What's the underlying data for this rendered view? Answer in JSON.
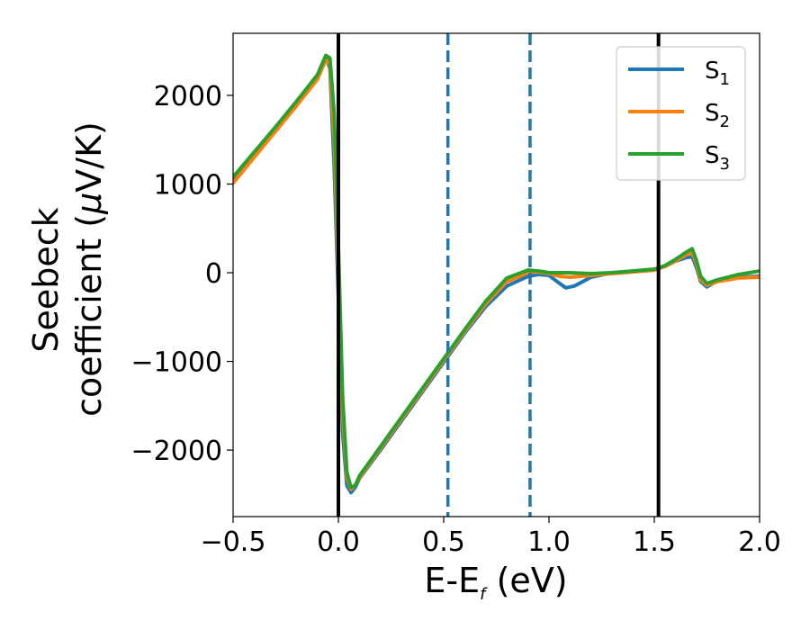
{
  "chart_data": {
    "type": "line",
    "xlabel": "E-E",
    "xlabel_sub": "f",
    "xlabel_unit": " (eV)",
    "ylabel_line1": "Seebeck",
    "ylabel_line2": "coefficient  (",
    "ylabel_mu": "μ",
    "ylabel_unit": "V/K)",
    "xlim": [
      -0.5,
      2.0
    ],
    "ylim": [
      -2750,
      2700
    ],
    "x_ticks": [
      -0.5,
      0.0,
      0.5,
      1.0,
      1.5,
      2.0
    ],
    "x_tick_labels": [
      "−0.5",
      "0.0",
      "0.5",
      "1.0",
      "1.5",
      "2.0"
    ],
    "y_ticks": [
      -2000,
      -1000,
      0,
      1000,
      2000
    ],
    "y_tick_labels": [
      "−2000",
      "−1000",
      "0",
      "1000",
      "2000"
    ],
    "grid": false,
    "legend_position": "top-right",
    "vertical_lines": [
      {
        "x": 0.0,
        "style": "solid",
        "color": "#000000"
      },
      {
        "x": 1.52,
        "style": "solid",
        "color": "#000000"
      },
      {
        "x": 0.52,
        "style": "dashed",
        "color": "#1f77b4"
      },
      {
        "x": 0.91,
        "style": "dashed",
        "color": "#1f77b4"
      }
    ],
    "series": [
      {
        "name": "S",
        "sub": "1",
        "color": "#1f77b4",
        "x": [
          -0.5,
          -0.4,
          -0.3,
          -0.2,
          -0.1,
          -0.06,
          -0.04,
          -0.02,
          0.0,
          0.02,
          0.04,
          0.06,
          0.08,
          0.1,
          0.2,
          0.3,
          0.4,
          0.5,
          0.6,
          0.7,
          0.8,
          0.9,
          0.95,
          1.0,
          1.05,
          1.08,
          1.12,
          1.2,
          1.3,
          1.4,
          1.5,
          1.55,
          1.6,
          1.65,
          1.68,
          1.7,
          1.72,
          1.75,
          1.8,
          1.9,
          2.0
        ],
        "y": [
          1050,
          1330,
          1610,
          1900,
          2200,
          2440,
          2300,
          1200,
          -300,
          -1800,
          -2400,
          -2480,
          -2420,
          -2320,
          -2000,
          -1670,
          -1340,
          -1010,
          -680,
          -380,
          -150,
          -40,
          -20,
          -30,
          -120,
          -170,
          -150,
          -50,
          0,
          20,
          40,
          70,
          130,
          170,
          180,
          60,
          -100,
          -160,
          -90,
          -50,
          -40
        ]
      },
      {
        "name": "S",
        "sub": "2",
        "color": "#ff7f0e",
        "x": [
          -0.5,
          -0.4,
          -0.3,
          -0.2,
          -0.1,
          -0.06,
          -0.04,
          -0.02,
          0.0,
          0.02,
          0.04,
          0.06,
          0.08,
          0.1,
          0.2,
          0.3,
          0.4,
          0.5,
          0.6,
          0.7,
          0.8,
          0.9,
          0.95,
          1.0,
          1.05,
          1.1,
          1.2,
          1.3,
          1.4,
          1.5,
          1.55,
          1.6,
          1.65,
          1.68,
          1.7,
          1.72,
          1.75,
          1.8,
          1.9,
          2.0
        ],
        "y": [
          1010,
          1300,
          1590,
          1880,
          2180,
          2400,
          2350,
          1500,
          0,
          -1600,
          -2300,
          -2440,
          -2400,
          -2310,
          -1980,
          -1650,
          -1320,
          -990,
          -660,
          -350,
          -100,
          0,
          10,
          -10,
          -40,
          -50,
          -30,
          -10,
          10,
          30,
          70,
          130,
          200,
          230,
          100,
          -80,
          -140,
          -100,
          -60,
          -50
        ]
      },
      {
        "name": "S",
        "sub": "3",
        "color": "#2ca02c",
        "x": [
          -0.5,
          -0.4,
          -0.3,
          -0.2,
          -0.1,
          -0.06,
          -0.04,
          -0.02,
          0.0,
          0.02,
          0.04,
          0.06,
          0.08,
          0.1,
          0.2,
          0.3,
          0.4,
          0.5,
          0.6,
          0.7,
          0.8,
          0.9,
          0.95,
          1.0,
          1.1,
          1.2,
          1.3,
          1.4,
          1.5,
          1.55,
          1.6,
          1.65,
          1.68,
          1.7,
          1.72,
          1.75,
          1.8,
          1.9,
          2.0
        ],
        "y": [
          1080,
          1360,
          1640,
          1930,
          2230,
          2450,
          2420,
          1800,
          300,
          -1400,
          -2250,
          -2420,
          -2400,
          -2290,
          -1960,
          -1630,
          -1300,
          -970,
          -640,
          -320,
          -60,
          30,
          20,
          0,
          0,
          -10,
          0,
          20,
          40,
          80,
          150,
          230,
          270,
          140,
          -40,
          -120,
          -80,
          -20,
          20
        ]
      }
    ]
  }
}
